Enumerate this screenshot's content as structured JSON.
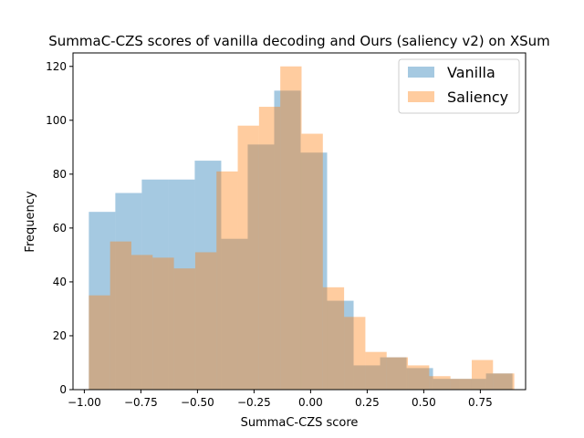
{
  "chart_data": {
    "type": "histogram",
    "title": "SummaC-CZS scores of vanilla decoding and Ours (saliency v2) on XSum",
    "xlabel": "SummaC-CZS score",
    "ylabel": "Frequency",
    "xlim": [
      -1.05,
      0.95
    ],
    "ylim": [
      0,
      125
    ],
    "xticks": [
      -1.0,
      -0.75,
      -0.5,
      -0.25,
      0.0,
      0.25,
      0.5,
      0.75
    ],
    "xtick_labels": [
      "−1.00",
      "−0.75",
      "−0.50",
      "−0.25",
      "0.00",
      "0.25",
      "0.50",
      "0.75"
    ],
    "yticks": [
      0,
      20,
      40,
      60,
      80,
      100,
      120
    ],
    "ytick_labels": [
      "0",
      "20",
      "40",
      "60",
      "80",
      "100",
      "120"
    ],
    "legend_position": "top-right",
    "series": [
      {
        "name": "Vanilla",
        "color": "#1f77b4",
        "alpha": 0.4,
        "bin_edges": [
          -0.98,
          -0.863,
          -0.746,
          -0.629,
          -0.512,
          -0.395,
          -0.278,
          -0.161,
          -0.044,
          0.073,
          0.19,
          0.307,
          0.424,
          0.541,
          0.658,
          0.775,
          0.892
        ],
        "counts": [
          66,
          73,
          78,
          78,
          85,
          56,
          91,
          111,
          88,
          33,
          9,
          12,
          8,
          4,
          4,
          6
        ]
      },
      {
        "name": "Saliency",
        "color": "#ff7f0e",
        "alpha": 0.4,
        "bin_edges": [
          -0.98,
          -0.886,
          -0.792,
          -0.698,
          -0.604,
          -0.51,
          -0.416,
          -0.322,
          -0.228,
          -0.134,
          -0.04,
          0.054,
          0.148,
          0.242,
          0.336,
          0.43,
          0.524,
          0.618,
          0.712,
          0.806,
          0.9
        ],
        "counts": [
          35,
          55,
          50,
          49,
          45,
          51,
          81,
          98,
          105,
          120,
          95,
          38,
          27,
          14,
          12,
          9,
          5,
          4,
          11,
          6
        ]
      }
    ]
  }
}
